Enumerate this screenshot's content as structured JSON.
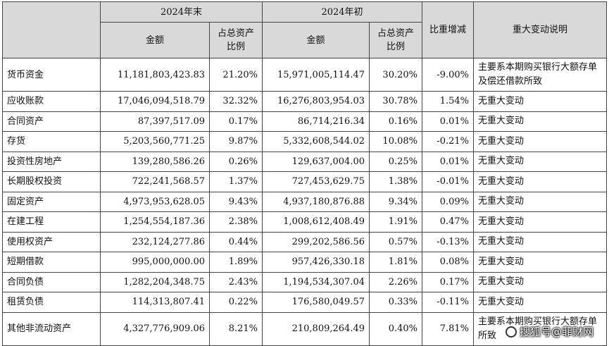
{
  "header": {
    "period_end": "2024年末",
    "period_start": "2024年初",
    "ratio_change": "比重增减",
    "remark": "重大变动说明",
    "amount": "金额",
    "ratio": "占总资产比例"
  },
  "rows": [
    {
      "item": "货币资金",
      "end_amount": "11,181,803,423.83",
      "end_ratio": "21.20%",
      "start_amount": "15,971,005,114.47",
      "start_ratio": "30.20%",
      "change": "-9.00%",
      "note": "主要系本期购买银行大额存单及偿还借款所致"
    },
    {
      "item": "应收账款",
      "end_amount": "17,046,094,518.79",
      "end_ratio": "32.32%",
      "start_amount": "16,276,803,954.03",
      "start_ratio": "30.78%",
      "change": "1.54%",
      "note": "无重大变动"
    },
    {
      "item": "合同资产",
      "end_amount": "87,397,517.09",
      "end_ratio": "0.17%",
      "start_amount": "86,714,216.34",
      "start_ratio": "0.16%",
      "change": "0.01%",
      "note": "无重大变动"
    },
    {
      "item": "存货",
      "end_amount": "5,203,560,771.25",
      "end_ratio": "9.87%",
      "start_amount": "5,332,608,544.02",
      "start_ratio": "10.08%",
      "change": "-0.21%",
      "note": "无重大变动"
    },
    {
      "item": "投资性房地产",
      "end_amount": "139,280,586.26",
      "end_ratio": "0.26%",
      "start_amount": "129,637,004.00",
      "start_ratio": "0.25%",
      "change": "0.01%",
      "note": "无重大变动"
    },
    {
      "item": "长期股权投资",
      "end_amount": "722,241,568.57",
      "end_ratio": "1.37%",
      "start_amount": "727,453,629.75",
      "start_ratio": "1.38%",
      "change": "-0.01%",
      "note": "无重大变动"
    },
    {
      "item": "固定资产",
      "end_amount": "4,973,953,628.05",
      "end_ratio": "9.43%",
      "start_amount": "4,937,180,876.88",
      "start_ratio": "9.34%",
      "change": "0.09%",
      "note": "无重大变动"
    },
    {
      "item": "在建工程",
      "end_amount": "1,254,554,187.36",
      "end_ratio": "2.38%",
      "start_amount": "1,008,612,408.49",
      "start_ratio": "1.91%",
      "change": "0.47%",
      "note": "无重大变动"
    },
    {
      "item": "使用权资产",
      "end_amount": "232,124,277.86",
      "end_ratio": "0.44%",
      "start_amount": "299,202,586.56",
      "start_ratio": "0.57%",
      "change": "-0.13%",
      "note": "无重大变动"
    },
    {
      "item": "短期借款",
      "end_amount": "995,000,000.00",
      "end_ratio": "1.89%",
      "start_amount": "957,426,330.18",
      "start_ratio": "1.81%",
      "change": "0.08%",
      "note": "无重大变动"
    },
    {
      "item": "合同负债",
      "end_amount": "1,282,204,348.75",
      "end_ratio": "2.43%",
      "start_amount": "1,194,534,307.04",
      "start_ratio": "2.26%",
      "change": "0.17%",
      "note": "无重大变动"
    },
    {
      "item": "租赁负债",
      "end_amount": "114,313,807.41",
      "end_ratio": "0.22%",
      "start_amount": "176,580,049.57",
      "start_ratio": "0.33%",
      "change": "-0.11%",
      "note": "无重大变动"
    },
    {
      "item": "其他非流动资产",
      "end_amount": "4,327,776,909.06",
      "end_ratio": "8.21%",
      "start_amount": "210,809,264.49",
      "start_ratio": "0.40%",
      "change": "7.81%",
      "note": "主要系本期购买银行大额存单所致"
    }
  ],
  "watermark": {
    "text": "搜狐号@菲财网",
    "icon": "sohu-logo-icon"
  }
}
